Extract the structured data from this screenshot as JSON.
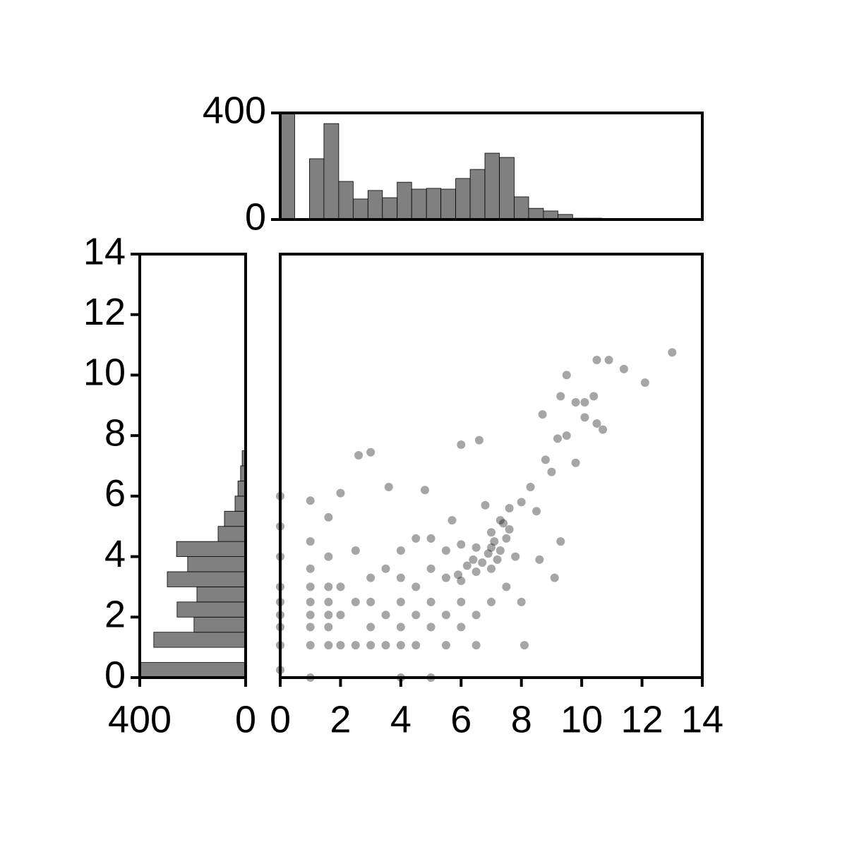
{
  "chart_data": [
    {
      "type": "scatter",
      "color": "#000000",
      "x": [
        0,
        0,
        0,
        0,
        0,
        0,
        0,
        0,
        0,
        1,
        1,
        1,
        1,
        1,
        1,
        1,
        1,
        1,
        1.6,
        1.6,
        1.6,
        1.6,
        1.6,
        1.6,
        1.6,
        2,
        2,
        2,
        2,
        2.5,
        2.5,
        2.5,
        2.6,
        3,
        3,
        3,
        3,
        3,
        3.5,
        3.5,
        3.5,
        3.6,
        4,
        4,
        4,
        4,
        4,
        4,
        4.5,
        4.5,
        4.5,
        4.5,
        4.8,
        5,
        5,
        5,
        5,
        5,
        5.5,
        5.5,
        5.5,
        5.5,
        6,
        6,
        6,
        6,
        6,
        6.5,
        6.5,
        6.5,
        6.5,
        6.6,
        7,
        7,
        7,
        7,
        7.2,
        7.3,
        7.5,
        7.5,
        7.6,
        7.8,
        8,
        8,
        8.1,
        8.3,
        8.5,
        8.6,
        8.8,
        9,
        9.2,
        9.3,
        9.1,
        9.5,
        9.8,
        9.3,
        9.8,
        10.4,
        10.1,
        10.5,
        10.7,
        10.5,
        10.9,
        11.4,
        12.1,
        13,
        8.7,
        9.5,
        10.1,
        5.7,
        6.8,
        7.4,
        6.9,
        7.1,
        6.7,
        7.3,
        6.4,
        7.6,
        5.9,
        6.2
      ],
      "y": [
        0.25,
        1.07,
        1.67,
        2.07,
        2.5,
        3,
        4,
        5,
        6,
        0,
        1.07,
        1.67,
        2.07,
        2.5,
        3,
        3.6,
        4.5,
        5.85,
        1.07,
        1.67,
        2.07,
        2.5,
        3,
        4,
        5.3,
        1.07,
        2.07,
        3,
        6.1,
        1.07,
        2.5,
        4.2,
        7.35,
        1.07,
        1.67,
        2.5,
        3.3,
        7.45,
        1.07,
        2.07,
        3.6,
        6.3,
        0,
        1.07,
        1.67,
        2.5,
        3.3,
        4.2,
        1.07,
        2.07,
        3,
        4.6,
        6.2,
        0,
        1.67,
        2.5,
        3.6,
        4.6,
        1.07,
        2.07,
        3.3,
        4.2,
        1.67,
        2.5,
        3.2,
        4.4,
        7.7,
        1.07,
        2.07,
        3.5,
        4.3,
        7.85,
        2.5,
        3.6,
        4.3,
        4.8,
        3.9,
        5.2,
        3,
        4.6,
        5.6,
        4,
        2.5,
        5.8,
        1.07,
        6.3,
        5.5,
        3.9,
        7.2,
        6.8,
        7.9,
        4.5,
        3.3,
        8,
        7.1,
        9.3,
        9.1,
        9.3,
        8.6,
        8.4,
        8.2,
        10.5,
        10.5,
        10.2,
        9.75,
        10.75,
        8.7,
        10,
        9.1,
        5.2,
        5.7,
        5.1,
        4.1,
        4.5,
        3.8,
        4.2,
        3.9,
        4.9,
        3.4,
        3.7
      ],
      "xlim": [
        0,
        14
      ],
      "xticks": [
        0,
        2,
        4,
        6,
        8,
        10,
        12,
        14
      ],
      "ylim": [
        0,
        14
      ]
    },
    {
      "type": "histogram",
      "orientation": "vertical",
      "color": "#808080",
      "bins": [
        0,
        0.48,
        0.97,
        1.45,
        1.94,
        2.42,
        2.91,
        3.39,
        3.88,
        4.36,
        4.85,
        5.33,
        5.82,
        6.3,
        6.79,
        7.27,
        7.76,
        8.24,
        8.73,
        9.21,
        9.7,
        10.18,
        10.67,
        11.15,
        11.64,
        12.12,
        12.61,
        13.09
      ],
      "counts": [
        400,
        0,
        228,
        360,
        143,
        77,
        109,
        82,
        140,
        114,
        117,
        114,
        154,
        188,
        249,
        233,
        85,
        42,
        32,
        19,
        5,
        5,
        2,
        1,
        0,
        0,
        1
      ],
      "xlim": [
        0,
        14
      ],
      "ylim": [
        0,
        400
      ],
      "yticks": [
        0,
        400
      ]
    },
    {
      "type": "histogram",
      "orientation": "horizontal",
      "color": "#808080",
      "bins": [
        0,
        0.5,
        1,
        1.5,
        2,
        2.5,
        3,
        3.5,
        4,
        4.5,
        5,
        5.5,
        6,
        6.5,
        7,
        7.5
      ],
      "counts": [
        400,
        0,
        347,
        195,
        259,
        184,
        296,
        219,
        261,
        104,
        80,
        40,
        29,
        19,
        13
      ],
      "xlim": [
        400,
        0
      ],
      "xticks": [
        400,
        0
      ],
      "ylim": [
        0,
        14
      ],
      "yticks": [
        0,
        2,
        4,
        6,
        8,
        10,
        12,
        14
      ]
    }
  ]
}
